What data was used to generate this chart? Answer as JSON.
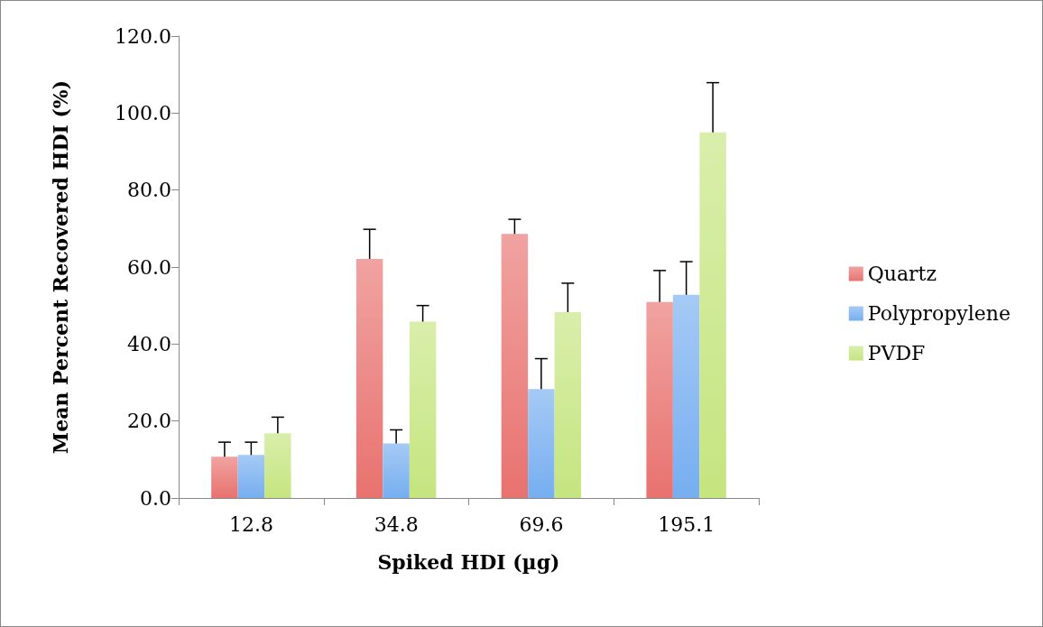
{
  "chart_data": {
    "type": "bar",
    "xlabel": "Spiked HDI (µg)",
    "ylabel": "Mean Percent Recovered HDI (%)",
    "categories": [
      "12.8",
      "34.8",
      "69.6",
      "195.1"
    ],
    "series": [
      {
        "name": "Quartz",
        "color": "#e8726f",
        "values": [
          10.7,
          62.1,
          68.6,
          50.9
        ],
        "errors": [
          3.8,
          7.7,
          3.8,
          8.2
        ]
      },
      {
        "name": "Polypropylene",
        "color": "#76aef0",
        "values": [
          11.2,
          14.2,
          28.3,
          52.8
        ],
        "errors": [
          3.3,
          3.5,
          7.9,
          8.6
        ]
      },
      {
        "name": "PVDF",
        "color": "#c5e57f",
        "values": [
          16.8,
          45.8,
          48.3,
          95.0
        ],
        "errors": [
          4.2,
          4.2,
          7.5,
          12.9
        ]
      }
    ],
    "ylim": [
      0,
      120
    ],
    "yticks": [
      {
        "value": 0,
        "label": "0.0"
      },
      {
        "value": 20,
        "label": "20.0"
      },
      {
        "value": 40,
        "label": "40.0"
      },
      {
        "value": 60,
        "label": "60.0"
      },
      {
        "value": 80,
        "label": "80.0"
      },
      {
        "value": 100,
        "label": "100.0"
      },
      {
        "value": 120,
        "label": "120.0"
      }
    ],
    "grid": false,
    "legend": "right"
  }
}
